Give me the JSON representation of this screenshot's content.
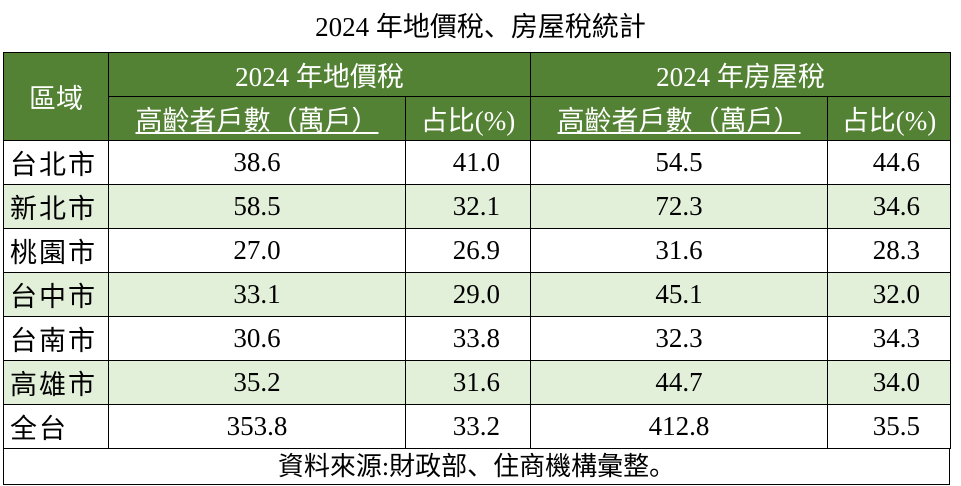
{
  "title": "2024 年地價稅、房屋稅統計",
  "table": {
    "region_header": "區域",
    "groups": [
      "2024 年地價稅",
      "2024 年房屋稅"
    ],
    "subheaders": [
      "高齡者戶數（萬戶）",
      "占比(%)",
      "高齡者戶數（萬戶）",
      "占比(%)"
    ],
    "rows": [
      [
        "台北市",
        "38.6",
        "41.0",
        "54.5",
        "44.6"
      ],
      [
        "新北市",
        "58.5",
        "32.1",
        "72.3",
        "34.6"
      ],
      [
        "桃園市",
        "27.0",
        "26.9",
        "31.6",
        "28.3"
      ],
      [
        "台中市",
        "33.1",
        "29.0",
        "45.1",
        "32.0"
      ],
      [
        "台南市",
        "30.6",
        "33.8",
        "32.3",
        "34.3"
      ],
      [
        "高雄市",
        "35.2",
        "31.6",
        "44.7",
        "34.0"
      ],
      [
        "全台",
        "353.8",
        "33.2",
        "412.8",
        "35.5"
      ]
    ]
  },
  "source": "資料來源:財政部、住商機構彙整。"
}
